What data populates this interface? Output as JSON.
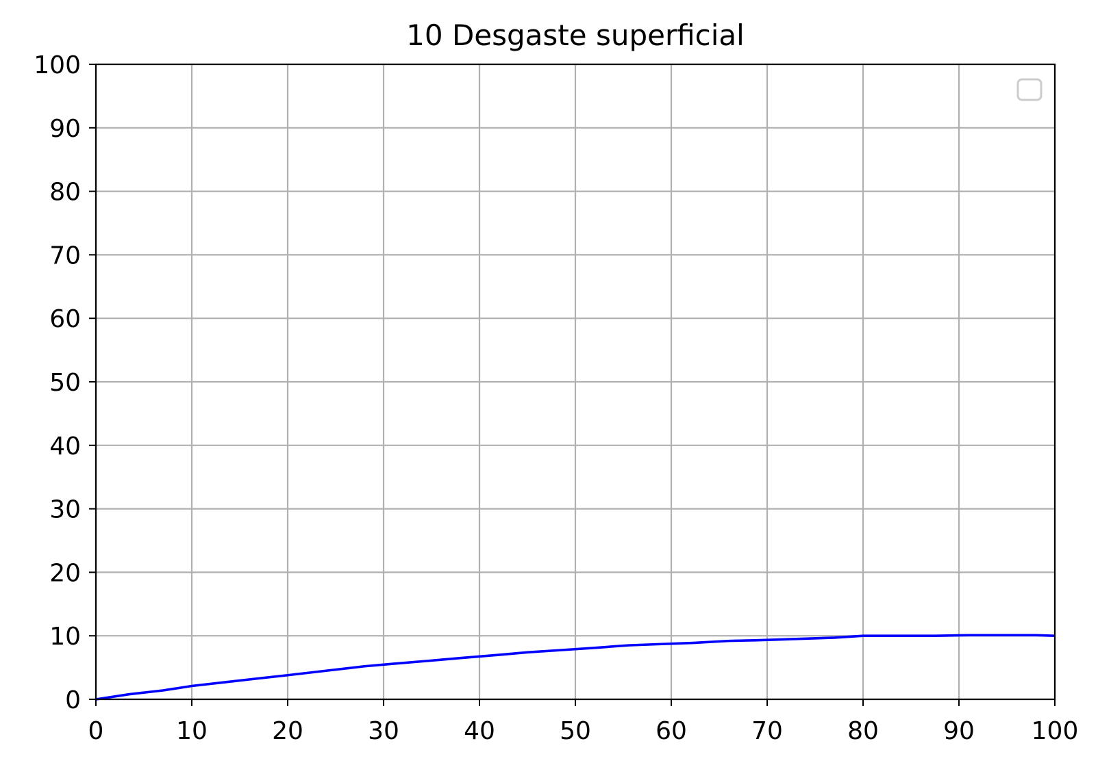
{
  "chart_data": {
    "type": "line",
    "title": "10 Desgaste superficial",
    "xlabel": "",
    "ylabel": "",
    "xlim": [
      0,
      100
    ],
    "ylim": [
      0,
      100
    ],
    "x_ticks": [
      "0",
      "10",
      "20",
      "30",
      "40",
      "50",
      "60",
      "70",
      "80",
      "90",
      "100"
    ],
    "y_ticks": [
      "0",
      "10",
      "20",
      "30",
      "40",
      "50",
      "60",
      "70",
      "80",
      "90",
      "100"
    ],
    "grid": true,
    "legend": {
      "position": "upper right",
      "entries": []
    },
    "colors": {
      "line": "#0000ff",
      "grid": "#b0b0b0",
      "legend_border": "#cccccc"
    },
    "series": [
      {
        "x": [
          0,
          3.5,
          7,
          10,
          13.5,
          17,
          20,
          24,
          28,
          31,
          35,
          38,
          42,
          45,
          49,
          52,
          55.5,
          59,
          62.5,
          66,
          69,
          73,
          77,
          80,
          84,
          87.5,
          91,
          94,
          98,
          100
        ],
        "y": [
          0,
          0.8,
          1.4,
          2.1,
          2.7,
          3.3,
          3.8,
          4.5,
          5.2,
          5.6,
          6.1,
          6.5,
          7.0,
          7.4,
          7.8,
          8.1,
          8.5,
          8.7,
          8.9,
          9.2,
          9.3,
          9.5,
          9.7,
          10.0,
          10.0,
          10.0,
          10.1,
          10.1,
          10.1,
          10.0
        ]
      }
    ]
  }
}
